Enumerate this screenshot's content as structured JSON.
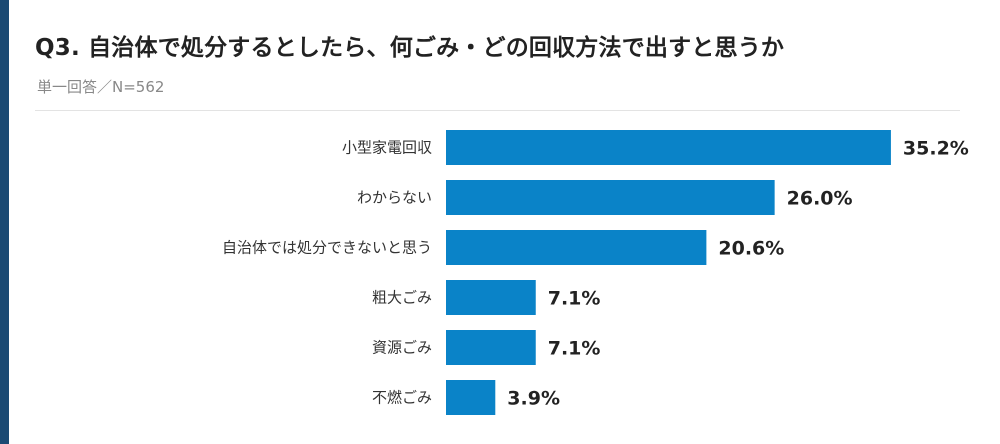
{
  "header": {
    "title": "Q3. 自治体で処分するとしたら、何ごみ・どの回収方法で出すと思うか",
    "subtitle": "単一回答／N=562"
  },
  "colors": {
    "bar": "#0a83c8",
    "label": "#333333",
    "value": "#222222",
    "accent_stripe": "#1b4a73"
  },
  "chart_data": {
    "type": "bar",
    "orientation": "horizontal",
    "categories": [
      "小型家電回収",
      "わからない",
      "自治体では処分できないと思う",
      "粗大ごみ",
      "資源ごみ",
      "不燃ごみ"
    ],
    "values": [
      35.2,
      26.0,
      20.6,
      7.1,
      7.1,
      3.9
    ],
    "value_labels": [
      "35.2%",
      "26.0%",
      "20.6%",
      "7.1%",
      "7.1%",
      "3.9%"
    ],
    "unit": "%",
    "grid": false,
    "legend": "none"
  }
}
